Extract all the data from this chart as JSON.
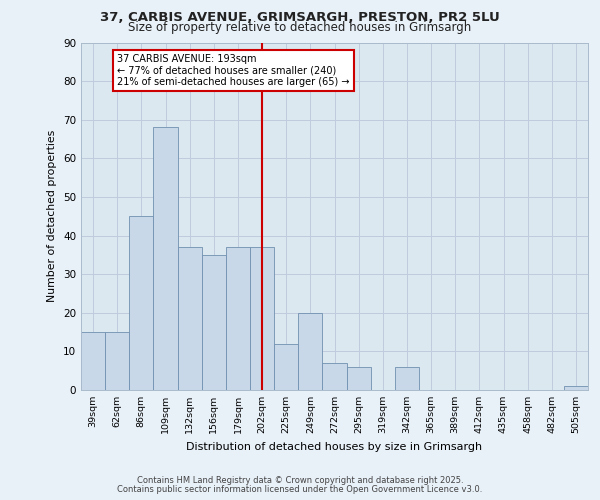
{
  "title_line1": "37, CARBIS AVENUE, GRIMSARGH, PRESTON, PR2 5LU",
  "title_line2": "Size of property relative to detached houses in Grimsargh",
  "xlabel": "Distribution of detached houses by size in Grimsargh",
  "ylabel": "Number of detached properties",
  "categories": [
    "39sqm",
    "62sqm",
    "86sqm",
    "109sqm",
    "132sqm",
    "156sqm",
    "179sqm",
    "202sqm",
    "225sqm",
    "249sqm",
    "272sqm",
    "295sqm",
    "319sqm",
    "342sqm",
    "365sqm",
    "389sqm",
    "412sqm",
    "435sqm",
    "458sqm",
    "482sqm",
    "505sqm"
  ],
  "values": [
    15,
    15,
    45,
    68,
    37,
    35,
    37,
    37,
    12,
    20,
    7,
    6,
    0,
    6,
    0,
    0,
    0,
    0,
    0,
    0,
    1
  ],
  "bar_color": "#c8d8e8",
  "bar_edge_color": "#7090b0",
  "vline_x_index": 7,
  "vline_color": "#cc0000",
  "annotation_text": "37 CARBIS AVENUE: 193sqm\n← 77% of detached houses are smaller (240)\n21% of semi-detached houses are larger (65) →",
  "annotation_box_color": "#ffffff",
  "annotation_box_edge": "#cc0000",
  "grid_color": "#c0ccdd",
  "bg_color": "#dce8f0",
  "fig_bg_color": "#e8f0f8",
  "footer_line1": "Contains HM Land Registry data © Crown copyright and database right 2025.",
  "footer_line2": "Contains public sector information licensed under the Open Government Licence v3.0.",
  "ylim": [
    0,
    90
  ],
  "yticks": [
    0,
    10,
    20,
    30,
    40,
    50,
    60,
    70,
    80,
    90
  ]
}
